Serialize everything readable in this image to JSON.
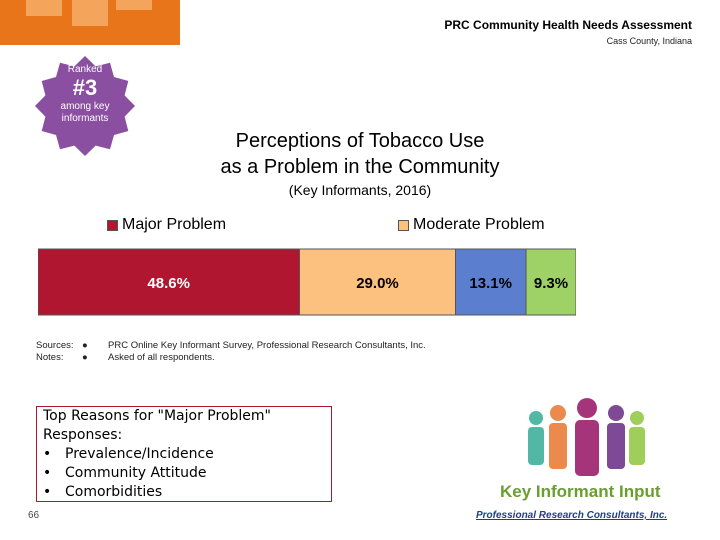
{
  "header": {
    "title": "PRC Community Health Needs Assessment",
    "subtitle": "Cass County, Indiana"
  },
  "rank": {
    "ranked_label": "Ranked",
    "number": "#3",
    "among_label": "among key informants"
  },
  "colors": {
    "major": "#b0162f",
    "moderate": "#fcc07f",
    "minor": "#5b7fce",
    "none": "#9fd266",
    "badge": "#8a4fa0",
    "accent": "#e8751a"
  },
  "chart_data": {
    "type": "bar",
    "orientation": "horizontal-stacked",
    "title": "Perceptions of Tobacco Use as a Problem in the Community",
    "title_line1": "Perceptions of Tobacco Use",
    "title_line2": "as a Problem in the Community",
    "subtitle": "(Key Informants, 2016)",
    "series": [
      {
        "name": "Major Problem",
        "value": 48.6,
        "label": "48.6%"
      },
      {
        "name": "Moderate Problem",
        "value": 29.0,
        "label": "29.0%"
      },
      {
        "name": "",
        "value": 13.1,
        "label": "13.1%"
      },
      {
        "name": "",
        "value": 9.3,
        "label": "9.3%"
      }
    ],
    "legend_position": "top",
    "xlim": [
      0,
      100
    ]
  },
  "notes": {
    "sources_label": "Sources:",
    "sources_text": "PRC Online Key Informant Survey, Professional Research Consultants, Inc.",
    "notes_label": "Notes:",
    "notes_text": "Asked of all respondents."
  },
  "reasons": {
    "title": "Top Reasons for \"Major Problem\" Responses:",
    "items": [
      "Prevalence/Incidence",
      "Community Attitude",
      "Comorbidities"
    ]
  },
  "page_number": "66",
  "branding": {
    "key_informant_label": "Key Informant Input",
    "prc_name": "Professional Research Consultants, Inc."
  }
}
